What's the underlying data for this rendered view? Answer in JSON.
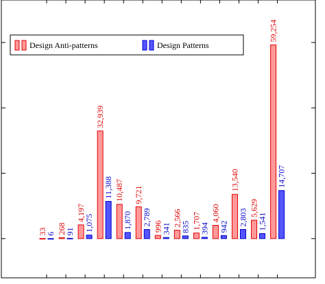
{
  "chart_data": {
    "type": "bar",
    "categories": [
      null,
      null,
      null,
      null,
      null,
      null,
      null,
      null,
      null,
      null,
      null,
      null,
      null
    ],
    "series": [
      {
        "name": "Design Anti-patterns",
        "color": "#ff9999",
        "stroke": "#e00000",
        "values": [
          33,
          268,
          4197,
          32939,
          10487,
          9721,
          996,
          2566,
          1707,
          4060,
          13540,
          5629,
          59254
        ],
        "value_labels": [
          "33",
          "268",
          "4,197",
          "32,939",
          "10,487",
          "9,721",
          "996",
          "2,566",
          "1,707",
          "4,060",
          "13,540",
          "5,629",
          "59,254"
        ]
      },
      {
        "name": "Design Patterns",
        "color": "#5555ff",
        "stroke": "#0000cc",
        "values": [
          6,
          91,
          1075,
          11388,
          1870,
          2789,
          341,
          835,
          394,
          942,
          2803,
          1541,
          14707
        ],
        "value_labels": [
          "6",
          "91",
          "1,075",
          "11,388",
          "1,870",
          "2,789",
          "341",
          "835",
          "394",
          "942",
          "2,803",
          "1,541",
          "14,707"
        ]
      }
    ],
    "ylim": [
      -12000,
      73000
    ],
    "yticks": [
      0,
      20000,
      40000,
      60000
    ],
    "legend": "top-left"
  }
}
